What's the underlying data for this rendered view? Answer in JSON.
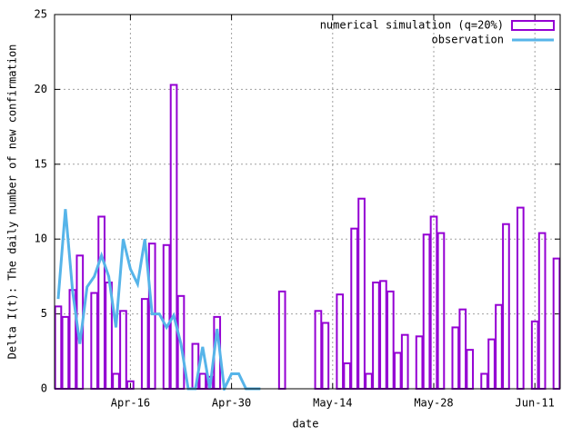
{
  "chart_data": {
    "type": "bar_line",
    "xlabel": "date",
    "ylabel": "Delta I(t): The daily number of new confirmation",
    "x": [
      "Apr-06",
      "Apr-07",
      "Apr-08",
      "Apr-09",
      "Apr-10",
      "Apr-11",
      "Apr-12",
      "Apr-13",
      "Apr-14",
      "Apr-15",
      "Apr-16",
      "Apr-17",
      "Apr-18",
      "Apr-19",
      "Apr-20",
      "Apr-21",
      "Apr-22",
      "Apr-23",
      "Apr-24",
      "Apr-25",
      "Apr-26",
      "Apr-27",
      "Apr-28",
      "Apr-29",
      "Apr-30",
      "May-01",
      "May-02",
      "May-03",
      "May-04",
      "May-05",
      "May-06",
      "May-07",
      "May-08",
      "May-09",
      "May-10",
      "May-11",
      "May-12",
      "May-13",
      "May-14",
      "May-15",
      "May-16",
      "May-17",
      "May-18",
      "May-19",
      "May-20",
      "May-21",
      "May-22",
      "May-23",
      "May-24",
      "May-25",
      "May-26",
      "May-27",
      "May-28",
      "May-29",
      "May-30",
      "May-31",
      "Jun-01",
      "Jun-02",
      "Jun-03",
      "Jun-04",
      "Jun-05",
      "Jun-06",
      "Jun-07",
      "Jun-08",
      "Jun-09",
      "Jun-10",
      "Jun-11",
      "Jun-12",
      "Jun-13",
      "Jun-14"
    ],
    "xticks": [
      "Apr-16",
      "Apr-30",
      "May-14",
      "May-28",
      "Jun-11"
    ],
    "ylim": [
      0,
      25
    ],
    "yticks": [
      0,
      5,
      10,
      15,
      20,
      25
    ],
    "grid": true,
    "legend": "top-right",
    "series": [
      {
        "name": "numerical simulation (q=20%)",
        "kind": "bar",
        "color": "#9400d3",
        "values": [
          5.5,
          4.8,
          6.6,
          8.9,
          0,
          6.4,
          11.5,
          7.1,
          1.0,
          5.2,
          0.5,
          0,
          6.0,
          9.7,
          0,
          9.6,
          20.3,
          6.2,
          0,
          3.0,
          1.0,
          0.8,
          4.8,
          0,
          0,
          0,
          0,
          0,
          0,
          0,
          0,
          6.5,
          0,
          0,
          0,
          0,
          5.2,
          4.4,
          0,
          6.3,
          1.7,
          10.7,
          12.7,
          1.0,
          7.1,
          7.2,
          6.5,
          2.4,
          3.6,
          0,
          3.5,
          10.3,
          11.5,
          10.4,
          0,
          4.1,
          5.3,
          2.6,
          0,
          1.0,
          3.3,
          5.6,
          11.0,
          0,
          12.1,
          0,
          4.5,
          10.4,
          0,
          8.7
        ]
      },
      {
        "name": "observation",
        "kind": "line",
        "color": "#56b4e9",
        "values": [
          6,
          12,
          6.5,
          3,
          6.8,
          7.5,
          8.9,
          7.5,
          4.1,
          10,
          8,
          7,
          10,
          5,
          5,
          4.1,
          4.9,
          3,
          0,
          0,
          2.8,
          0,
          4,
          0,
          1,
          1,
          0,
          0,
          0,
          null,
          null,
          null,
          null,
          null,
          null,
          null,
          null,
          null,
          null,
          null,
          null,
          null,
          null,
          null,
          null,
          null,
          null,
          null,
          null,
          null,
          null,
          null,
          null,
          null,
          null,
          null,
          null,
          null,
          null,
          null,
          null,
          null,
          null,
          null,
          null,
          null,
          null,
          null,
          null,
          null
        ]
      }
    ]
  }
}
